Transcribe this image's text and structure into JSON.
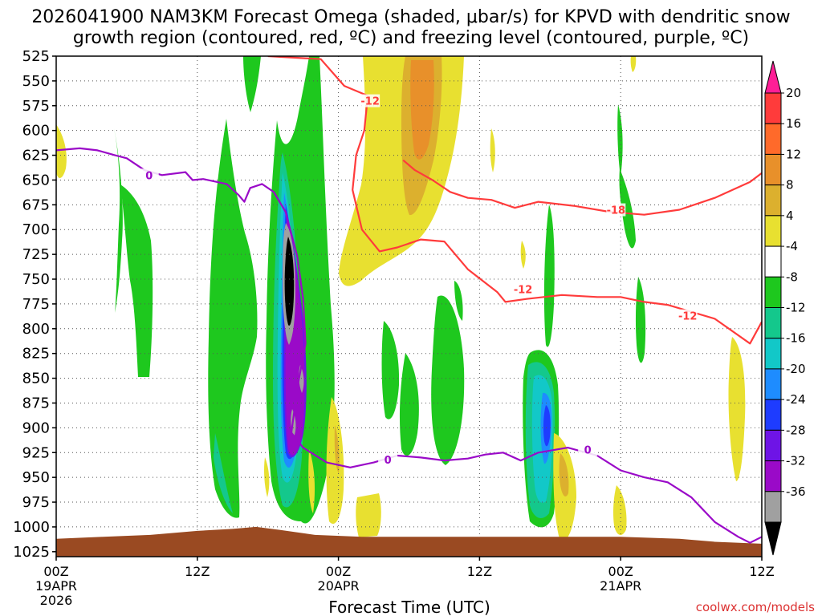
{
  "chart_data": {
    "type": "contour",
    "title_line1": "2026041900 NAM3KM Forecast Omega (shaded, μbar/s) for KPVD with dendritic snow",
    "title_line2": "growth region (contoured, red, ºC) and freezing level (contoured, purple, ºC)",
    "xlabel": "Forecast Time (UTC)",
    "credit": "coolwx.com/models",
    "y_axis": {
      "units": "hPa",
      "ticks": [
        525,
        550,
        575,
        600,
        625,
        650,
        675,
        700,
        725,
        750,
        775,
        800,
        825,
        850,
        875,
        900,
        925,
        950,
        975,
        1000,
        1025
      ]
    },
    "x_axis": {
      "units": "forecast hour",
      "range": [
        0,
        60
      ],
      "ticks": [
        {
          "h": 0,
          "line1": "00Z",
          "line2": "19APR",
          "line3": "2026"
        },
        {
          "h": 12,
          "line1": "12Z",
          "line2": "",
          "line3": ""
        },
        {
          "h": 24,
          "line1": "00Z",
          "line2": "20APR",
          "line3": ""
        },
        {
          "h": 36,
          "line1": "12Z",
          "line2": "",
          "line3": ""
        },
        {
          "h": 48,
          "line1": "00Z",
          "line2": "21APR",
          "line3": ""
        },
        {
          "h": 60,
          "line1": "12Z",
          "line2": "",
          "line3": ""
        }
      ]
    },
    "colorbar": {
      "labels": [
        "20",
        "16",
        "12",
        "8",
        "4",
        "-4",
        "-8",
        "-12",
        "-16",
        "-20",
        "-24",
        "-28",
        "-32",
        "-36"
      ],
      "colors_top_to_bottom": [
        "#ff3b3b",
        "#ff6a2a",
        "#e8902a",
        "#dcb02e",
        "#e8e030",
        "#ffffff",
        "#1ec81e",
        "#14c88c",
        "#12c8c8",
        "#1e8cff",
        "#1e3cff",
        "#6e14e6",
        "#9a0ac8",
        "#a0a0a0"
      ],
      "top_arrow_color": "#ff1e96",
      "bottom_arrow_color": "#000000"
    },
    "shading_colors": {
      "omega_neg4": "#1ec81e",
      "omega_neg8": "#14c88c",
      "omega_neg12": "#12c8c8",
      "omega_neg16": "#1e8cff",
      "omega_neg20": "#1e3cff",
      "omega_neg24": "#6e14e6",
      "omega_neg28": "#9a0ac8",
      "omega_neg32": "#a0a0a0",
      "omega_neg36": "#000000",
      "omega_pos4": "#e8e030",
      "omega_pos8": "#dcb02e",
      "omega_pos12": "#e8902a",
      "terrain": "#9a4a22"
    },
    "contours": {
      "dendritic_color": "#ff3b3b",
      "freezing_color": "#9a0ac8",
      "dgz_upper_label": "-12",
      "dgz_mid_label": "-18",
      "dgz_lower_label_a": "-12",
      "dgz_lower_label_b": "-12",
      "freezing_label_a": "0",
      "freezing_label_b": "0",
      "freezing_label_c": "0",
      "dgz_upper": [
        [
          18,
          525
        ],
        [
          22.5,
          528
        ],
        [
          24.5,
          555
        ],
        [
          26.5,
          565
        ],
        [
          26.2,
          600
        ],
        [
          25.5,
          625
        ],
        [
          25.2,
          660
        ],
        [
          26,
          700
        ],
        [
          27.5,
          722
        ],
        [
          29,
          718
        ],
        [
          31,
          710
        ],
        [
          33,
          712
        ],
        [
          35,
          740
        ],
        [
          37.5,
          763
        ],
        [
          38.2,
          773
        ],
        [
          40,
          770
        ],
        [
          43,
          766
        ],
        [
          46,
          768
        ],
        [
          48,
          768
        ],
        [
          50,
          773
        ],
        [
          52,
          776
        ],
        [
          56,
          790
        ],
        [
          59,
          815
        ],
        [
          60,
          793
        ]
      ],
      "dgz_mid": [
        [
          29.5,
          630
        ],
        [
          30.5,
          640
        ],
        [
          32,
          650
        ],
        [
          33.5,
          662
        ],
        [
          35,
          668
        ],
        [
          37,
          670
        ],
        [
          39,
          678
        ],
        [
          41,
          672
        ],
        [
          44,
          676
        ],
        [
          47,
          682
        ],
        [
          50,
          685
        ],
        [
          53,
          680
        ],
        [
          56,
          668
        ],
        [
          59,
          652
        ],
        [
          60,
          643
        ]
      ],
      "freezing": [
        [
          0,
          620
        ],
        [
          2,
          618
        ],
        [
          3.5,
          620
        ],
        [
          5,
          625
        ],
        [
          6,
          628
        ],
        [
          7.5,
          640
        ],
        [
          9,
          645
        ],
        [
          11,
          642
        ],
        [
          11.6,
          650
        ],
        [
          12.5,
          649
        ],
        [
          14.5,
          654
        ],
        [
          15.5,
          665
        ],
        [
          16,
          672
        ],
        [
          16.5,
          658
        ],
        [
          17.5,
          654
        ],
        [
          18.5,
          662
        ],
        [
          19.5,
          682
        ],
        [
          20.5,
          727
        ],
        [
          21,
          770
        ],
        [
          21.2,
          815
        ],
        [
          20.5,
          860
        ],
        [
          20,
          905
        ],
        [
          21,
          920
        ],
        [
          23,
          935
        ],
        [
          25,
          940
        ],
        [
          27,
          935
        ],
        [
          29,
          928
        ],
        [
          31,
          930
        ],
        [
          33,
          933
        ],
        [
          35,
          931
        ],
        [
          36.5,
          927
        ],
        [
          38,
          925
        ],
        [
          39.5,
          933
        ],
        [
          41,
          925
        ],
        [
          43.5,
          920
        ],
        [
          46,
          928
        ],
        [
          48,
          943
        ],
        [
          50,
          950
        ],
        [
          52,
          955
        ],
        [
          54,
          970
        ],
        [
          56,
          995
        ],
        [
          58,
          1010
        ],
        [
          59,
          1016
        ],
        [
          60,
          1010
        ]
      ],
      "terrain_top": [
        [
          0,
          1012
        ],
        [
          4,
          1010
        ],
        [
          8,
          1008
        ],
        [
          12,
          1004
        ],
        [
          15,
          1002
        ],
        [
          17,
          1000
        ],
        [
          19,
          1003
        ],
        [
          22,
          1008
        ],
        [
          26,
          1010
        ],
        [
          32,
          1010
        ],
        [
          40,
          1010
        ],
        [
          48,
          1010
        ],
        [
          53,
          1012
        ],
        [
          56,
          1015
        ],
        [
          60,
          1017
        ]
      ]
    }
  }
}
